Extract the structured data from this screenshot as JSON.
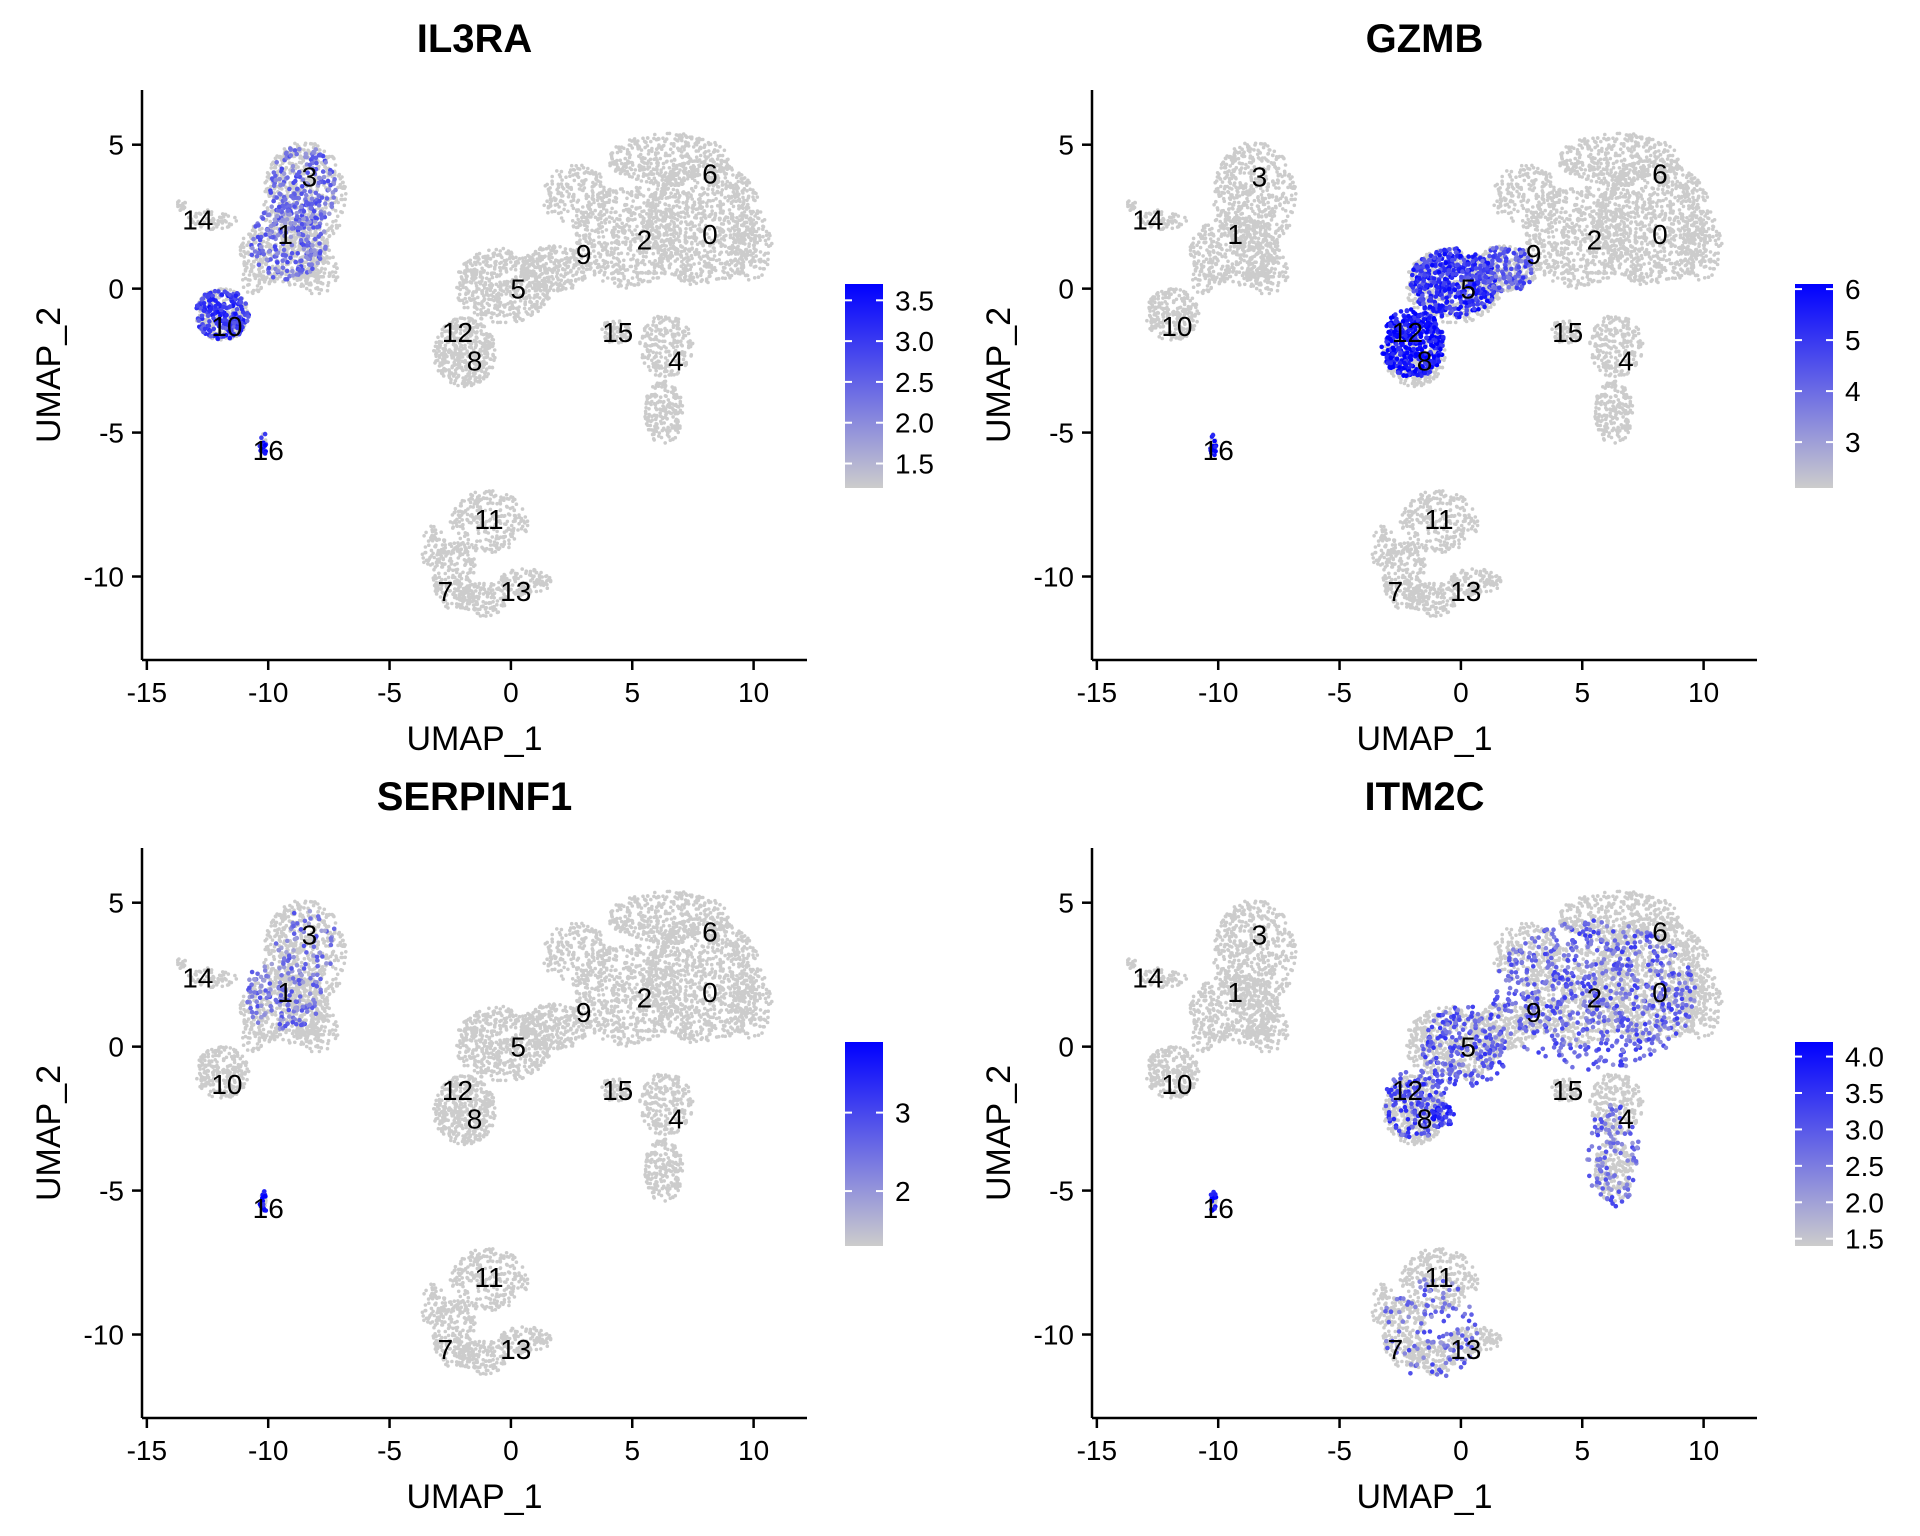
{
  "chart_data": [
    {
      "type": "scatter",
      "title": "IL3RA",
      "xlabel": "UMAP_1",
      "ylabel": "UMAP_2",
      "xticks": [
        -15,
        -10,
        -5,
        0,
        5,
        10
      ],
      "yticks": [
        -10,
        -5,
        0,
        5
      ],
      "xlim": [
        -15.2,
        12.2
      ],
      "ylim": [
        -12.9,
        6.9
      ],
      "legend_position": "right",
      "color_low": "#cccccc",
      "color_high": "#0000ff",
      "colorbar": {
        "min": 1.2,
        "max": 3.7,
        "ticks": [
          1.5,
          2.0,
          2.5,
          3.0,
          3.5
        ],
        "tick_labels": [
          "1.5",
          "2.0",
          "2.5",
          "3.0",
          "3.5"
        ]
      },
      "cluster_labels": [
        {
          "label": "0",
          "x": 8.2,
          "y": 1.9
        },
        {
          "label": "1",
          "x": -9.3,
          "y": 1.9
        },
        {
          "label": "2",
          "x": 5.5,
          "y": 1.7
        },
        {
          "label": "3",
          "x": -8.3,
          "y": 3.9
        },
        {
          "label": "4",
          "x": 6.8,
          "y": -2.5
        },
        {
          "label": "5",
          "x": 0.3,
          "y": 0.0
        },
        {
          "label": "6",
          "x": 8.2,
          "y": 4.0
        },
        {
          "label": "7",
          "x": -2.7,
          "y": -10.5
        },
        {
          "label": "8",
          "x": -1.5,
          "y": -2.5
        },
        {
          "label": "9",
          "x": 3.0,
          "y": 1.2
        },
        {
          "label": "10",
          "x": -11.7,
          "y": -1.3
        },
        {
          "label": "11",
          "x": -0.9,
          "y": -8.0
        },
        {
          "label": "12",
          "x": -2.2,
          "y": -1.5
        },
        {
          "label": "13",
          "x": 0.2,
          "y": -10.5
        },
        {
          "label": "14",
          "x": -12.9,
          "y": 2.4
        },
        {
          "label": "15",
          "x": 4.4,
          "y": -1.5
        },
        {
          "label": "16",
          "x": -10.0,
          "y": -5.6
        }
      ],
      "high_expression_regions": [
        {
          "cluster": "10",
          "cx": -11.9,
          "cy": -0.9,
          "rx": 1.1,
          "ry": 0.9,
          "level": 0.7,
          "density": 0.8
        },
        {
          "cluster": "3",
          "cx": -8.6,
          "cy": 3.5,
          "rx": 1.4,
          "ry": 1.5,
          "level": 0.45,
          "density": 0.35
        },
        {
          "cluster": "1",
          "cx": -9.2,
          "cy": 1.6,
          "rx": 1.6,
          "ry": 1.3,
          "level": 0.45,
          "density": 0.35
        },
        {
          "cluster": "16",
          "cx": -10.2,
          "cy": -5.4,
          "rx": 0.15,
          "ry": 0.4,
          "level": 0.9,
          "density": 0.8
        }
      ]
    },
    {
      "type": "scatter",
      "title": "GZMB",
      "xlabel": "UMAP_1",
      "ylabel": "UMAP_2",
      "xticks": [
        -15,
        -10,
        -5,
        0,
        5,
        10
      ],
      "yticks": [
        -10,
        -5,
        0,
        5
      ],
      "xlim": [
        -15.2,
        12.2
      ],
      "ylim": [
        -12.9,
        6.9
      ],
      "legend_position": "right",
      "color_low": "#cccccc",
      "color_high": "#0000ff",
      "colorbar": {
        "min": 2.1,
        "max": 6.1,
        "ticks": [
          3,
          4,
          5,
          6
        ],
        "tick_labels": [
          "3",
          "4",
          "5",
          "6"
        ]
      },
      "cluster_labels": [
        {
          "label": "0",
          "x": 8.2,
          "y": 1.9
        },
        {
          "label": "1",
          "x": -9.3,
          "y": 1.9
        },
        {
          "label": "2",
          "x": 5.5,
          "y": 1.7
        },
        {
          "label": "3",
          "x": -8.3,
          "y": 3.9
        },
        {
          "label": "4",
          "x": 6.8,
          "y": -2.5
        },
        {
          "label": "5",
          "x": 0.3,
          "y": 0.0
        },
        {
          "label": "6",
          "x": 8.2,
          "y": 4.0
        },
        {
          "label": "7",
          "x": -2.7,
          "y": -10.5
        },
        {
          "label": "8",
          "x": -1.5,
          "y": -2.5
        },
        {
          "label": "9",
          "x": 3.0,
          "y": 1.2
        },
        {
          "label": "10",
          "x": -11.7,
          "y": -1.3
        },
        {
          "label": "11",
          "x": -0.9,
          "y": -8.0
        },
        {
          "label": "12",
          "x": -2.2,
          "y": -1.5
        },
        {
          "label": "13",
          "x": 0.2,
          "y": -10.5
        },
        {
          "label": "14",
          "x": -12.9,
          "y": 2.4
        },
        {
          "label": "15",
          "x": 4.4,
          "y": -1.5
        },
        {
          "label": "16",
          "x": -10.0,
          "y": -5.6
        }
      ],
      "high_expression_regions": [
        {
          "cluster": "12/8",
          "cx": -2.0,
          "cy": -1.9,
          "rx": 1.3,
          "ry": 1.2,
          "level": 0.9,
          "density": 0.95
        },
        {
          "cluster": "5",
          "cx": -0.3,
          "cy": 0.2,
          "rx": 1.8,
          "ry": 1.2,
          "level": 0.75,
          "density": 0.8
        },
        {
          "cluster": "5-9",
          "cx": 1.9,
          "cy": 0.7,
          "rx": 1.2,
          "ry": 0.8,
          "level": 0.55,
          "density": 0.5
        },
        {
          "cluster": "16",
          "cx": -10.2,
          "cy": -5.4,
          "rx": 0.15,
          "ry": 0.4,
          "level": 0.9,
          "density": 0.8
        }
      ]
    },
    {
      "type": "scatter",
      "title": "SERPINF1",
      "xlabel": "UMAP_1",
      "ylabel": "UMAP_2",
      "xticks": [
        -15,
        -10,
        -5,
        0,
        5,
        10
      ],
      "yticks": [
        -10,
        -5,
        0,
        5
      ],
      "xlim": [
        -15.2,
        12.2
      ],
      "ylim": [
        -12.9,
        6.9
      ],
      "legend_position": "right",
      "color_low": "#cccccc",
      "color_high": "#0000ff",
      "colorbar": {
        "min": 1.3,
        "max": 3.9,
        "ticks": [
          2,
          3
        ],
        "tick_labels": [
          "2",
          "3"
        ]
      },
      "cluster_labels": [
        {
          "label": "0",
          "x": 8.2,
          "y": 1.9
        },
        {
          "label": "1",
          "x": -9.3,
          "y": 1.9
        },
        {
          "label": "2",
          "x": 5.5,
          "y": 1.7
        },
        {
          "label": "3",
          "x": -8.3,
          "y": 3.9
        },
        {
          "label": "4",
          "x": 6.8,
          "y": -2.5
        },
        {
          "label": "5",
          "x": 0.3,
          "y": 0.0
        },
        {
          "label": "6",
          "x": 8.2,
          "y": 4.0
        },
        {
          "label": "7",
          "x": -2.7,
          "y": -10.5
        },
        {
          "label": "8",
          "x": -1.5,
          "y": -2.5
        },
        {
          "label": "9",
          "x": 3.0,
          "y": 1.2
        },
        {
          "label": "10",
          "x": -11.7,
          "y": -1.3
        },
        {
          "label": "11",
          "x": -0.9,
          "y": -8.0
        },
        {
          "label": "12",
          "x": -2.2,
          "y": -1.5
        },
        {
          "label": "13",
          "x": 0.2,
          "y": -10.5
        },
        {
          "label": "14",
          "x": -12.9,
          "y": 2.4
        },
        {
          "label": "15",
          "x": 4.4,
          "y": -1.5
        },
        {
          "label": "16",
          "x": -10.0,
          "y": -5.6
        }
      ],
      "high_expression_regions": [
        {
          "cluster": "1",
          "cx": -9.4,
          "cy": 1.8,
          "rx": 1.6,
          "ry": 1.3,
          "level": 0.4,
          "density": 0.25
        },
        {
          "cluster": "3",
          "cx": -8.4,
          "cy": 3.5,
          "rx": 1.3,
          "ry": 1.3,
          "level": 0.4,
          "density": 0.12
        },
        {
          "cluster": "16",
          "cx": -10.2,
          "cy": -5.4,
          "rx": 0.15,
          "ry": 0.4,
          "level": 0.95,
          "density": 0.8
        }
      ]
    },
    {
      "type": "scatter",
      "title": "ITM2C",
      "xlabel": "UMAP_1",
      "ylabel": "UMAP_2",
      "xticks": [
        -15,
        -10,
        -5,
        0,
        5,
        10
      ],
      "yticks": [
        -10,
        -5,
        0,
        5
      ],
      "xlim": [
        -15.2,
        12.2
      ],
      "ylim": [
        -12.9,
        6.9
      ],
      "legend_position": "right",
      "color_low": "#cccccc",
      "color_high": "#0000ff",
      "colorbar": {
        "min": 1.4,
        "max": 4.2,
        "ticks": [
          1.5,
          2.0,
          2.5,
          3.0,
          3.5,
          4.0
        ],
        "tick_labels": [
          "1.5",
          "2.0",
          "2.5",
          "3.0",
          "3.5",
          "4.0"
        ]
      },
      "cluster_labels": [
        {
          "label": "0",
          "x": 8.2,
          "y": 1.9
        },
        {
          "label": "1",
          "x": -9.3,
          "y": 1.9
        },
        {
          "label": "2",
          "x": 5.5,
          "y": 1.7
        },
        {
          "label": "3",
          "x": -8.3,
          "y": 3.9
        },
        {
          "label": "4",
          "x": 6.8,
          "y": -2.5
        },
        {
          "label": "5",
          "x": 0.3,
          "y": 0.0
        },
        {
          "label": "6",
          "x": 8.2,
          "y": 4.0
        },
        {
          "label": "7",
          "x": -2.7,
          "y": -10.5
        },
        {
          "label": "8",
          "x": -1.5,
          "y": -2.5
        },
        {
          "label": "9",
          "x": 3.0,
          "y": 1.2
        },
        {
          "label": "10",
          "x": -11.7,
          "y": -1.3
        },
        {
          "label": "11",
          "x": -0.9,
          "y": -8.0
        },
        {
          "label": "12",
          "x": -2.2,
          "y": -1.5
        },
        {
          "label": "13",
          "x": 0.2,
          "y": -10.5
        },
        {
          "label": "14",
          "x": -12.9,
          "y": 2.4
        },
        {
          "label": "15",
          "x": 4.4,
          "y": -1.5
        },
        {
          "label": "16",
          "x": -10.0,
          "y": -5.6
        }
      ],
      "high_expression_regions": [
        {
          "cluster": "0/2/6/9",
          "cx": 5.5,
          "cy": 1.8,
          "rx": 4.2,
          "ry": 2.6,
          "level": 0.5,
          "density": 0.22
        },
        {
          "cluster": "5",
          "cx": 0.2,
          "cy": 0.0,
          "rx": 1.8,
          "ry": 1.4,
          "level": 0.55,
          "density": 0.3
        },
        {
          "cluster": "12/8",
          "cx": -1.8,
          "cy": -2.0,
          "rx": 1.4,
          "ry": 1.2,
          "level": 0.6,
          "density": 0.35
        },
        {
          "cluster": "8",
          "cx": -0.7,
          "cy": -2.4,
          "rx": 0.5,
          "ry": 0.35,
          "level": 0.8,
          "density": 0.8
        },
        {
          "cluster": "4",
          "cx": 6.3,
          "cy": -3.8,
          "rx": 1.1,
          "ry": 1.8,
          "level": 0.45,
          "density": 0.2
        },
        {
          "cluster": "7/11/13",
          "cx": -1.3,
          "cy": -9.8,
          "rx": 2.0,
          "ry": 1.8,
          "level": 0.45,
          "density": 0.12
        },
        {
          "cluster": "16",
          "cx": -10.2,
          "cy": -5.4,
          "rx": 0.15,
          "ry": 0.4,
          "level": 0.95,
          "density": 0.8
        }
      ]
    }
  ]
}
